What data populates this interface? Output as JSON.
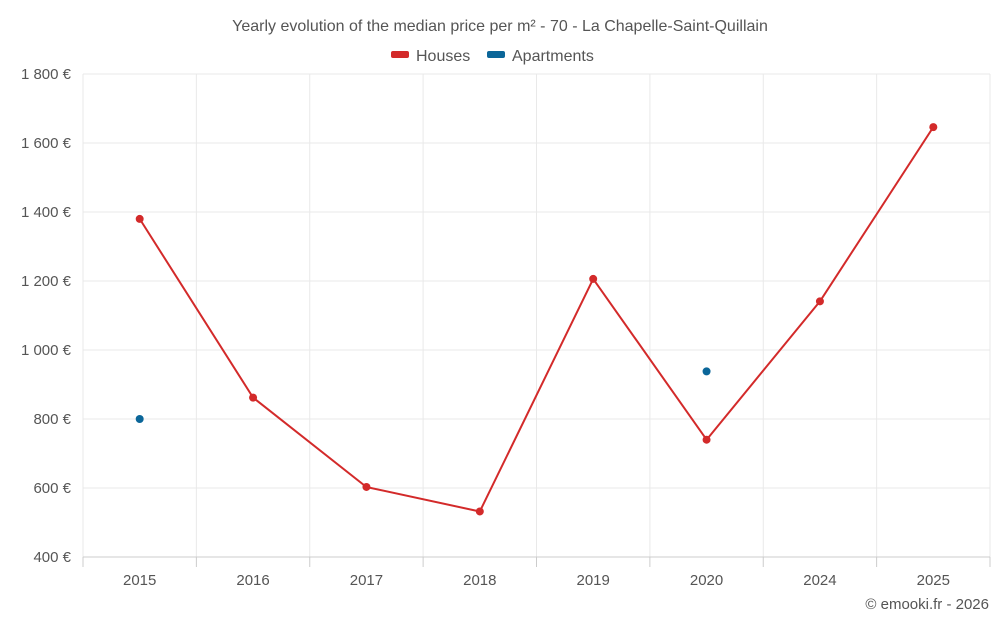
{
  "chart_data": {
    "type": "line",
    "title": "Yearly evolution of the median price per m² - 70 - La Chapelle-Saint-Quillain",
    "categories": [
      "2015",
      "2016",
      "2017",
      "2018",
      "2019",
      "2020",
      "2024",
      "2025"
    ],
    "yticks": [
      "400 €",
      "600 €",
      "800 €",
      "1 000 €",
      "1 200 €",
      "1 400 €",
      "1 600 €",
      "1 800 €"
    ],
    "ylim": [
      400,
      1800
    ],
    "xlabel": "",
    "ylabel": "",
    "legend_position": "top-center",
    "series": [
      {
        "name": "Houses",
        "color": "#d32a2a",
        "line": true,
        "values": [
          1380,
          862,
          603,
          532,
          1206,
          740,
          1141,
          1646
        ]
      },
      {
        "name": "Apartments",
        "color": "#0b6699",
        "line": false,
        "values": [
          800,
          null,
          null,
          null,
          null,
          938,
          null,
          null
        ]
      }
    ]
  },
  "credit": "© emooki.fr - 2026"
}
